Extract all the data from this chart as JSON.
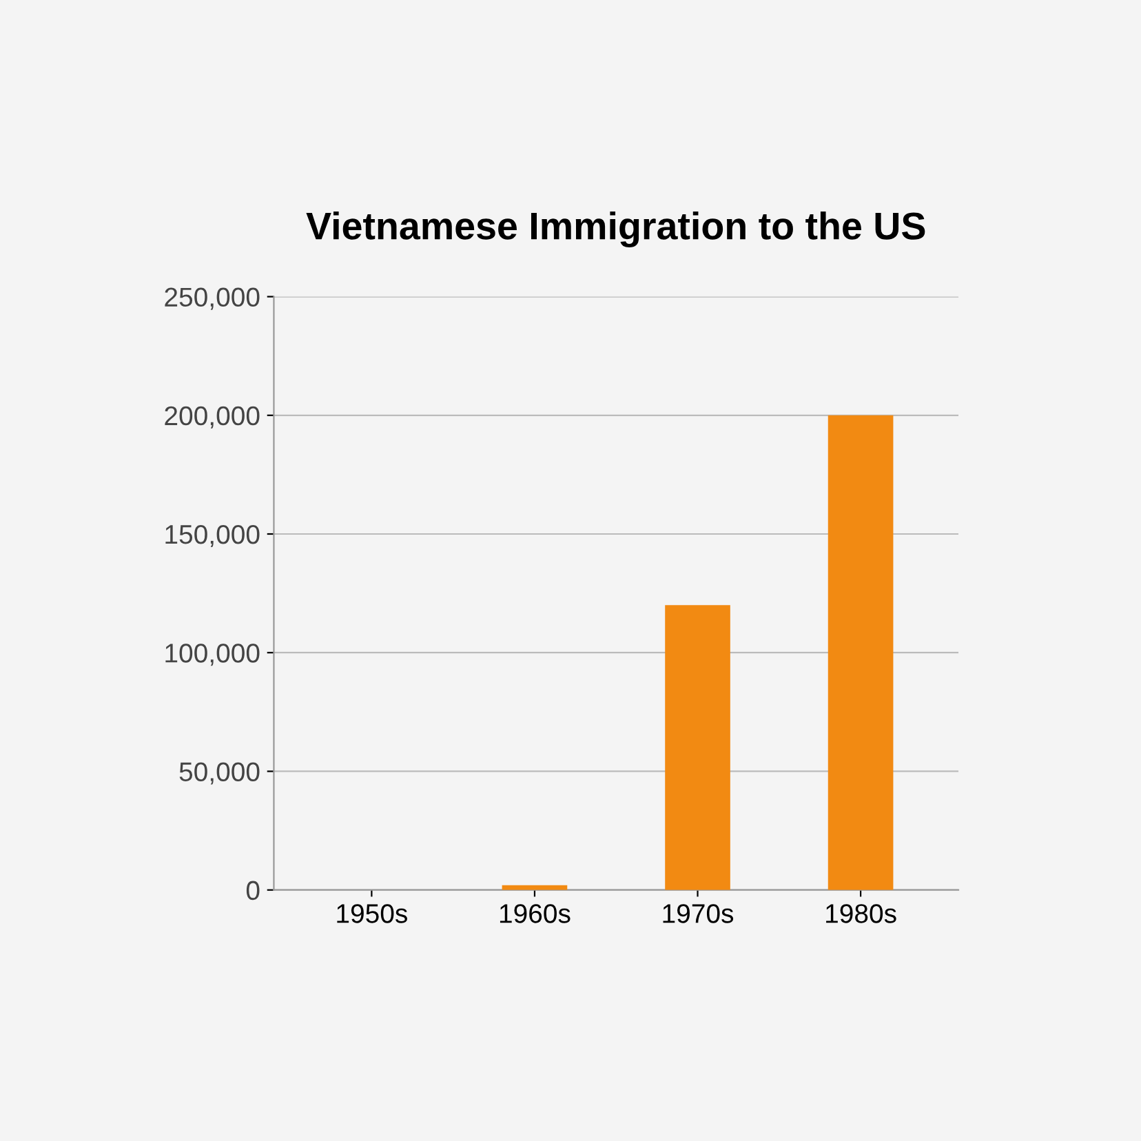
{
  "chart_data": {
    "type": "bar",
    "title": "Vietnamese Immigration to the US",
    "categories": [
      "1950s",
      "1960s",
      "1970s",
      "1980s"
    ],
    "values": [
      0,
      2000,
      120000,
      200000
    ],
    "color": "#f28a12",
    "ylim": [
      0,
      250000
    ],
    "yticks": [
      {
        "value": 0,
        "label": "0"
      },
      {
        "value": 50000,
        "label": "50,000"
      },
      {
        "value": 100000,
        "label": "100,000"
      },
      {
        "value": 150000,
        "label": "150,000"
      },
      {
        "value": 200000,
        "label": "200,000"
      },
      {
        "value": 250000,
        "label": "250,000"
      }
    ],
    "grid": "y"
  }
}
